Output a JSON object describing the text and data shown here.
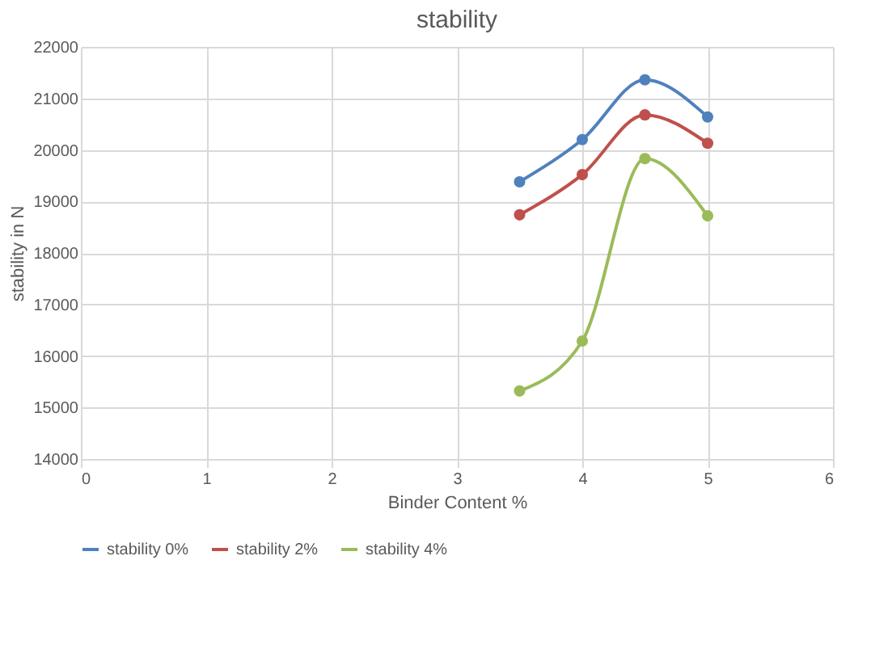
{
  "chart_data": {
    "type": "line",
    "title": "stability",
    "xlabel": "Binder Content %",
    "ylabel": "stability in N",
    "x": [
      3.5,
      4,
      4.5,
      5
    ],
    "series": [
      {
        "name": "stability 0%",
        "color": "#4f81bd",
        "values": [
          19380,
          20200,
          21360,
          20640
        ]
      },
      {
        "name": "stability 2%",
        "color": "#c0504d",
        "values": [
          18740,
          19520,
          20680,
          20130
        ]
      },
      {
        "name": "stability 4%",
        "color": "#9bbb59",
        "values": [
          15320,
          16290,
          19830,
          18720
        ]
      }
    ],
    "xlim": [
      0,
      6
    ],
    "xticks": [
      0,
      1,
      2,
      3,
      4,
      5,
      6
    ],
    "ylim": [
      14000,
      22000
    ],
    "yticks": [
      14000,
      15000,
      16000,
      17000,
      18000,
      19000,
      20000,
      21000,
      22000
    ],
    "grid": true,
    "legend": "bottom",
    "marker": "circle",
    "line_style": "solid"
  }
}
